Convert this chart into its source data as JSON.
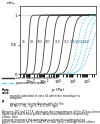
{
  "xlabel": "p (Pa)",
  "ylabel": "n/nₘ",
  "ylim": [
    0.0,
    1.15
  ],
  "bg_color": "#ffffff",
  "curve_color_solid": "#333333",
  "curve_color_dashed": "#55ccee",
  "temperatures_solid": [
    95,
    99,
    103,
    107,
    110,
    113
  ],
  "temperatures_dashed": [
    116,
    120,
    124,
    128
  ],
  "centers_solid": [
    -2.1,
    -1.55,
    -1.0,
    -0.4,
    0.25,
    0.9
  ],
  "centers_dashed": [
    1.3,
    1.65,
    2.0,
    2.3
  ],
  "steepness_solid": [
    18,
    16,
    12,
    9,
    7,
    6
  ],
  "steepness_dashed": [
    5,
    4,
    4,
    3
  ],
  "plateau": 1.0,
  "yticks": [
    0,
    0.5,
    1.0
  ],
  "yticklabels": [
    "0",
    "0.5",
    "1"
  ],
  "legend_solid_label": "xenon adsorption isotherms",
  "legend_dashed_label": "gaseous adsorption",
  "top_label": "n/nₘ"
}
